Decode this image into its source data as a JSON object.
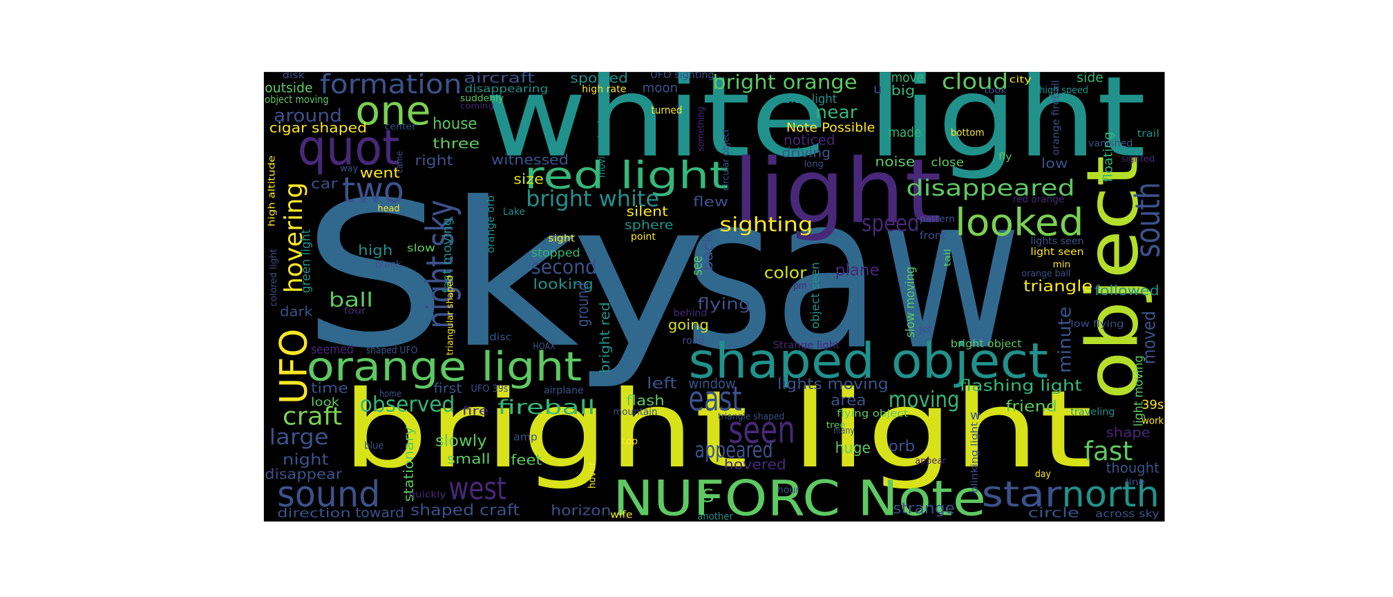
{
  "words": [
    {
      "text": "Sky",
      "color": "#31688e"
    },
    {
      "text": "saw",
      "color": "#31688e"
    },
    {
      "text": "white light",
      "color": "#21918c"
    },
    {
      "text": "bright light",
      "color": "#d8e219"
    },
    {
      "text": "light",
      "color": "#482878"
    },
    {
      "text": "object",
      "color": "#b5de2b"
    },
    {
      "text": "shaped object",
      "color": "#21918c"
    },
    {
      "text": "NUFORC Note",
      "color": "#5ec962"
    },
    {
      "text": "orange light",
      "color": "#5ec962"
    },
    {
      "text": "red light",
      "color": "#35b779"
    },
    {
      "text": "quot",
      "color": "#482878"
    },
    {
      "text": "one",
      "color": "#7ad151"
    },
    {
      "text": "formation",
      "color": "#3b528b"
    },
    {
      "text": "two",
      "color": "#3b528b"
    },
    {
      "text": "night sky",
      "color": "#3b528b"
    },
    {
      "text": "UFO",
      "color": "#fde725"
    },
    {
      "text": "hovering",
      "color": "#fde725"
    },
    {
      "text": "looked",
      "color": "#7ad151"
    },
    {
      "text": "disappeared",
      "color": "#5ec962"
    },
    {
      "text": "south",
      "color": "#3b528b"
    },
    {
      "text": "north",
      "color": "#21918c"
    },
    {
      "text": "star",
      "color": "#3b528b"
    },
    {
      "text": "seen",
      "color": "#482878"
    },
    {
      "text": "east",
      "color": "#3b528b"
    },
    {
      "text": "west",
      "color": "#482878"
    },
    {
      "text": "sound",
      "color": "#3b528b"
    },
    {
      "text": "fast",
      "color": "#5ec962"
    },
    {
      "text": "appeared",
      "color": "#3b528b"
    },
    {
      "text": "speed",
      "color": "#482878"
    },
    {
      "text": "sighting",
      "color": "#fde725"
    },
    {
      "text": "bright white",
      "color": "#21918c"
    },
    {
      "text": "bright orange",
      "color": "#5ec962"
    },
    {
      "text": "cloud",
      "color": "#5ec962"
    },
    {
      "text": "moving",
      "color": "#35b779"
    },
    {
      "text": "observed",
      "color": "#35b779"
    },
    {
      "text": "fireball",
      "color": "#35b779"
    },
    {
      "text": "craft",
      "color": "#7ad151"
    },
    {
      "text": "large",
      "color": "#3b528b"
    },
    {
      "text": "ball",
      "color": "#5ec962"
    },
    {
      "text": "second",
      "color": "#3b528b"
    },
    {
      "text": "looking",
      "color": "#21918c"
    },
    {
      "text": "flying",
      "color": "#3b528b"
    },
    {
      "text": "plane",
      "color": "#482878"
    },
    {
      "text": "color",
      "color": "#d8e219"
    },
    {
      "text": "triangle",
      "color": "#fde725"
    },
    {
      "text": "followed",
      "color": "#21918c"
    },
    {
      "text": "minute",
      "color": "#3b528b"
    },
    {
      "text": "moved",
      "color": "#3b528b"
    },
    {
      "text": "flashing light",
      "color": "#35b779"
    },
    {
      "text": "lights moving",
      "color": "#3b528b"
    },
    {
      "text": "window",
      "color": "#3b528b"
    },
    {
      "text": "left",
      "color": "#3b528b"
    },
    {
      "text": "flash",
      "color": "#5ec962"
    },
    {
      "text": "area",
      "color": "#3b528b"
    },
    {
      "text": "friend",
      "color": "#5ec962"
    },
    {
      "text": "huge",
      "color": "#5ec962"
    },
    {
      "text": "orb",
      "color": "#3b528b"
    },
    {
      "text": "hovered",
      "color": "#482878"
    },
    {
      "text": "strange",
      "color": "#3b528b"
    },
    {
      "text": "circle",
      "color": "#3b528b"
    },
    {
      "text": "across sky",
      "color": "#3b528b"
    },
    {
      "text": "thought",
      "color": "#3b528b"
    },
    {
      "text": "shape",
      "color": "#482878"
    },
    {
      "text": "39s",
      "color": "#fde725"
    },
    {
      "text": "horizon",
      "color": "#3b528b"
    },
    {
      "text": "shaped craft",
      "color": "#3b528b"
    },
    {
      "text": "toward",
      "color": "#3b528b"
    },
    {
      "text": "direction",
      "color": "#3b528b"
    },
    {
      "text": "disappear",
      "color": "#3b528b"
    },
    {
      "text": "night",
      "color": "#3b528b"
    },
    {
      "text": "slowly",
      "color": "#5ec962"
    },
    {
      "text": "small",
      "color": "#5ec962"
    },
    {
      "text": "feet",
      "color": "#5ec962"
    },
    {
      "text": "amp",
      "color": "#3b528b"
    },
    {
      "text": "stationary",
      "color": "#5ec962"
    },
    {
      "text": "time",
      "color": "#3b528b"
    },
    {
      "text": "first",
      "color": "#3b528b"
    },
    {
      "text": "look",
      "color": "#5ec962"
    },
    {
      "text": "fire",
      "color": "#482878"
    },
    {
      "text": "around",
      "color": "#3b528b"
    },
    {
      "text": "outside",
      "color": "#5ec962"
    },
    {
      "text": "object moving",
      "color": "#5ec962"
    },
    {
      "text": "cigar shaped",
      "color": "#fde725"
    },
    {
      "text": "house",
      "color": "#5ec962"
    },
    {
      "text": "three",
      "color": "#5ec962"
    },
    {
      "text": "right",
      "color": "#3b528b"
    },
    {
      "text": "witnessed",
      "color": "#3b528b"
    },
    {
      "text": "aircraft",
      "color": "#3b528b"
    },
    {
      "text": "spotted",
      "color": "#21918c"
    },
    {
      "text": "moon",
      "color": "#3b528b"
    },
    {
      "text": "disappearing",
      "color": "#21918c"
    },
    {
      "text": "suddenly",
      "color": "#5ec962"
    },
    {
      "text": "size",
      "color": "#d8e219"
    },
    {
      "text": "silent",
      "color": "#fde725"
    },
    {
      "text": "flew",
      "color": "#3b528b"
    },
    {
      "text": "sphere",
      "color": "#21918c"
    },
    {
      "text": "stopped",
      "color": "#35b779"
    },
    {
      "text": "went",
      "color": "#fde725"
    },
    {
      "text": "car",
      "color": "#3b528b"
    },
    {
      "text": "high",
      "color": "#21918c"
    },
    {
      "text": "slow",
      "color": "#5ec962"
    },
    {
      "text": "dark",
      "color": "#3b528b"
    },
    {
      "text": "seemed",
      "color": "#482878"
    },
    {
      "text": "near",
      "color": "#35b779"
    },
    {
      "text": "noticed",
      "color": "#482878"
    },
    {
      "text": "driving",
      "color": "#3b528b"
    },
    {
      "text": "Note Possible",
      "color": "#fde725"
    },
    {
      "text": "blue light",
      "color": "#21918c"
    },
    {
      "text": "move",
      "color": "#35b779"
    },
    {
      "text": "made",
      "color": "#35b779"
    },
    {
      "text": "noise",
      "color": "#5ec962"
    },
    {
      "text": "close",
      "color": "#5ec962"
    },
    {
      "text": "big",
      "color": "#35b779"
    },
    {
      "text": "side",
      "color": "#35b779"
    },
    {
      "text": "low",
      "color": "#3b528b"
    },
    {
      "text": "going",
      "color": "#d8e219"
    },
    {
      "text": "see",
      "color": "#5ec962"
    },
    {
      "text": "back",
      "color": "#3b528b"
    },
    {
      "text": "ground",
      "color": "#3b528b"
    },
    {
      "text": "bright red",
      "color": "#21918c"
    },
    {
      "text": "fast moving",
      "color": "#21918c"
    },
    {
      "text": "green light",
      "color": "#21918c"
    },
    {
      "text": "orange orb",
      "color": "#21918c"
    },
    {
      "text": "floating",
      "color": "#35b779"
    },
    {
      "text": "light moving",
      "color": "#5ec962"
    },
    {
      "text": "slow moving",
      "color": "#5ec962"
    },
    {
      "text": "object seen",
      "color": "#21918c"
    },
    {
      "text": "u",
      "color": "#3b528b"
    },
    {
      "text": "high rate",
      "color": "#fde725"
    },
    {
      "text": "UFO sighting",
      "color": "#3b528b"
    },
    {
      "text": "turned",
      "color": "#fde725"
    },
    {
      "text": "something",
      "color": "#482878"
    },
    {
      "text": "circular object",
      "color": "#3b528b"
    },
    {
      "text": "moving slowly",
      "color": "#21918c"
    },
    {
      "text": "HOAX",
      "color": "#3b528b"
    },
    {
      "text": "disc",
      "color": "#3b528b"
    },
    {
      "text": "UFO 39s",
      "color": "#3b528b"
    },
    {
      "text": "airplane",
      "color": "#3b528b"
    },
    {
      "text": "road",
      "color": "#3b528b"
    },
    {
      "text": "behind",
      "color": "#482878"
    },
    {
      "text": "jet",
      "color": "#3b528b"
    },
    {
      "text": "bright object",
      "color": "#5ec962"
    },
    {
      "text": "Strange light",
      "color": "#482878"
    },
    {
      "text": "lights seen",
      "color": "#3b528b"
    },
    {
      "text": "light seen",
      "color": "#fde725"
    },
    {
      "text": "orange ball",
      "color": "#3b528b"
    },
    {
      "text": "min",
      "color": "#fde725"
    },
    {
      "text": "low flying",
      "color": "#3b528b"
    },
    {
      "text": "triangle shaped",
      "color": "#3b528b"
    },
    {
      "text": "flying object",
      "color": "#5ec962"
    },
    {
      "text": "mountain",
      "color": "#3b528b"
    },
    {
      "text": "home",
      "color": "#3b528b"
    },
    {
      "text": "blue",
      "color": "#3b528b"
    },
    {
      "text": "top",
      "color": "#fde725"
    },
    {
      "text": "hover",
      "color": "#fde725"
    },
    {
      "text": "wife",
      "color": "#fde725"
    },
    {
      "text": "another",
      "color": "#21918c"
    },
    {
      "text": "quickly",
      "color": "#482878"
    },
    {
      "text": "hour",
      "color": "#3b528b"
    },
    {
      "text": "day",
      "color": "#fde725"
    },
    {
      "text": "line",
      "color": "#3b528b"
    },
    {
      "text": "work",
      "color": "#fde725"
    },
    {
      "text": "traveling",
      "color": "#21918c"
    },
    {
      "text": "many",
      "color": "#3b528b"
    },
    {
      "text": "tree",
      "color": "#5ec962"
    },
    {
      "text": "city",
      "color": "#fde725"
    },
    {
      "text": "took",
      "color": "#3b528b"
    },
    {
      "text": "high speed",
      "color": "#21918c"
    },
    {
      "text": "trail",
      "color": "#21918c"
    },
    {
      "text": "sighted",
      "color": "#482878"
    },
    {
      "text": "fly",
      "color": "#5ec962"
    },
    {
      "text": "pattern",
      "color": "#3b528b"
    },
    {
      "text": "front",
      "color": "#3b528b"
    },
    {
      "text": "tail",
      "color": "#5ec962"
    },
    {
      "text": "pm",
      "color": "#482878"
    },
    {
      "text": "point",
      "color": "#fde725"
    },
    {
      "text": "sight",
      "color": "#fde725"
    },
    {
      "text": "Lake",
      "color": "#21918c"
    },
    {
      "text": "black",
      "color": "#3b528b"
    },
    {
      "text": "four",
      "color": "#482878"
    },
    {
      "text": "way",
      "color": "#3b528b"
    },
    {
      "text": "came",
      "color": "#3b528b"
    },
    {
      "text": "head",
      "color": "#fde725"
    },
    {
      "text": "center",
      "color": "#3b528b"
    },
    {
      "text": "coming",
      "color": "#482878"
    },
    {
      "text": "disk",
      "color": "#3b528b"
    },
    {
      "text": "bottom",
      "color": "#fde725"
    },
    {
      "text": "long",
      "color": "#3b528b"
    },
    {
      "text": "vanished",
      "color": "#3b528b"
    },
    {
      "text": "red orange",
      "color": "#482878"
    },
    {
      "text": "orange fireball",
      "color": "#3b528b"
    },
    {
      "text": "high altitude",
      "color": "#fde725"
    },
    {
      "text": "colored light",
      "color": "#3b528b"
    },
    {
      "text": "triangular shaped",
      "color": "#fde725"
    },
    {
      "text": "shaped UFO",
      "color": "#3b528b"
    },
    {
      "text": "blinking light",
      "color": "#3b528b"
    },
    {
      "text": "appear",
      "color": "#482878"
    },
    {
      "text": "S",
      "color": "#5ec962"
    },
    {
      "text": "w",
      "color": "#3b528b"
    }
  ]
}
